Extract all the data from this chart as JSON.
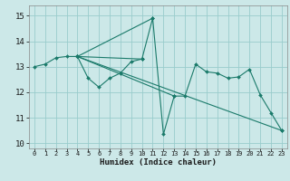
{
  "xlabel": "Humidex (Indice chaleur)",
  "bg_color": "#cce8e8",
  "grid_color": "#99cccc",
  "line_color": "#1a7a6a",
  "marker_color": "#1a7a6a",
  "xlim": [
    -0.5,
    23.5
  ],
  "ylim": [
    9.8,
    15.4
  ],
  "yticks": [
    10,
    11,
    12,
    13,
    14,
    15
  ],
  "xticks": [
    0,
    1,
    2,
    3,
    4,
    5,
    6,
    7,
    8,
    9,
    10,
    11,
    12,
    13,
    14,
    15,
    16,
    17,
    18,
    19,
    20,
    21,
    22,
    23
  ],
  "lines": [
    {
      "x": [
        0,
        1,
        2,
        3,
        4,
        5,
        6,
        7,
        8,
        9,
        10,
        11,
        12,
        13,
        14,
        15,
        16,
        17,
        18,
        19,
        20,
        21,
        22,
        23
      ],
      "y": [
        13.0,
        13.1,
        13.35,
        13.4,
        13.4,
        12.55,
        12.2,
        12.55,
        12.75,
        13.2,
        13.3,
        14.9,
        10.35,
        11.85,
        11.85,
        13.1,
        12.8,
        12.75,
        12.55,
        12.6,
        12.9,
        11.9,
        11.2,
        10.5
      ]
    },
    {
      "x": [
        4,
        23
      ],
      "y": [
        13.4,
        10.5
      ]
    },
    {
      "x": [
        4,
        10
      ],
      "y": [
        13.4,
        13.3
      ]
    },
    {
      "x": [
        4,
        11
      ],
      "y": [
        13.4,
        14.9
      ]
    },
    {
      "x": [
        4,
        13
      ],
      "y": [
        13.4,
        11.85
      ]
    }
  ],
  "xtick_fontsize": 5.0,
  "ytick_fontsize": 6.5,
  "xlabel_fontsize": 6.5
}
